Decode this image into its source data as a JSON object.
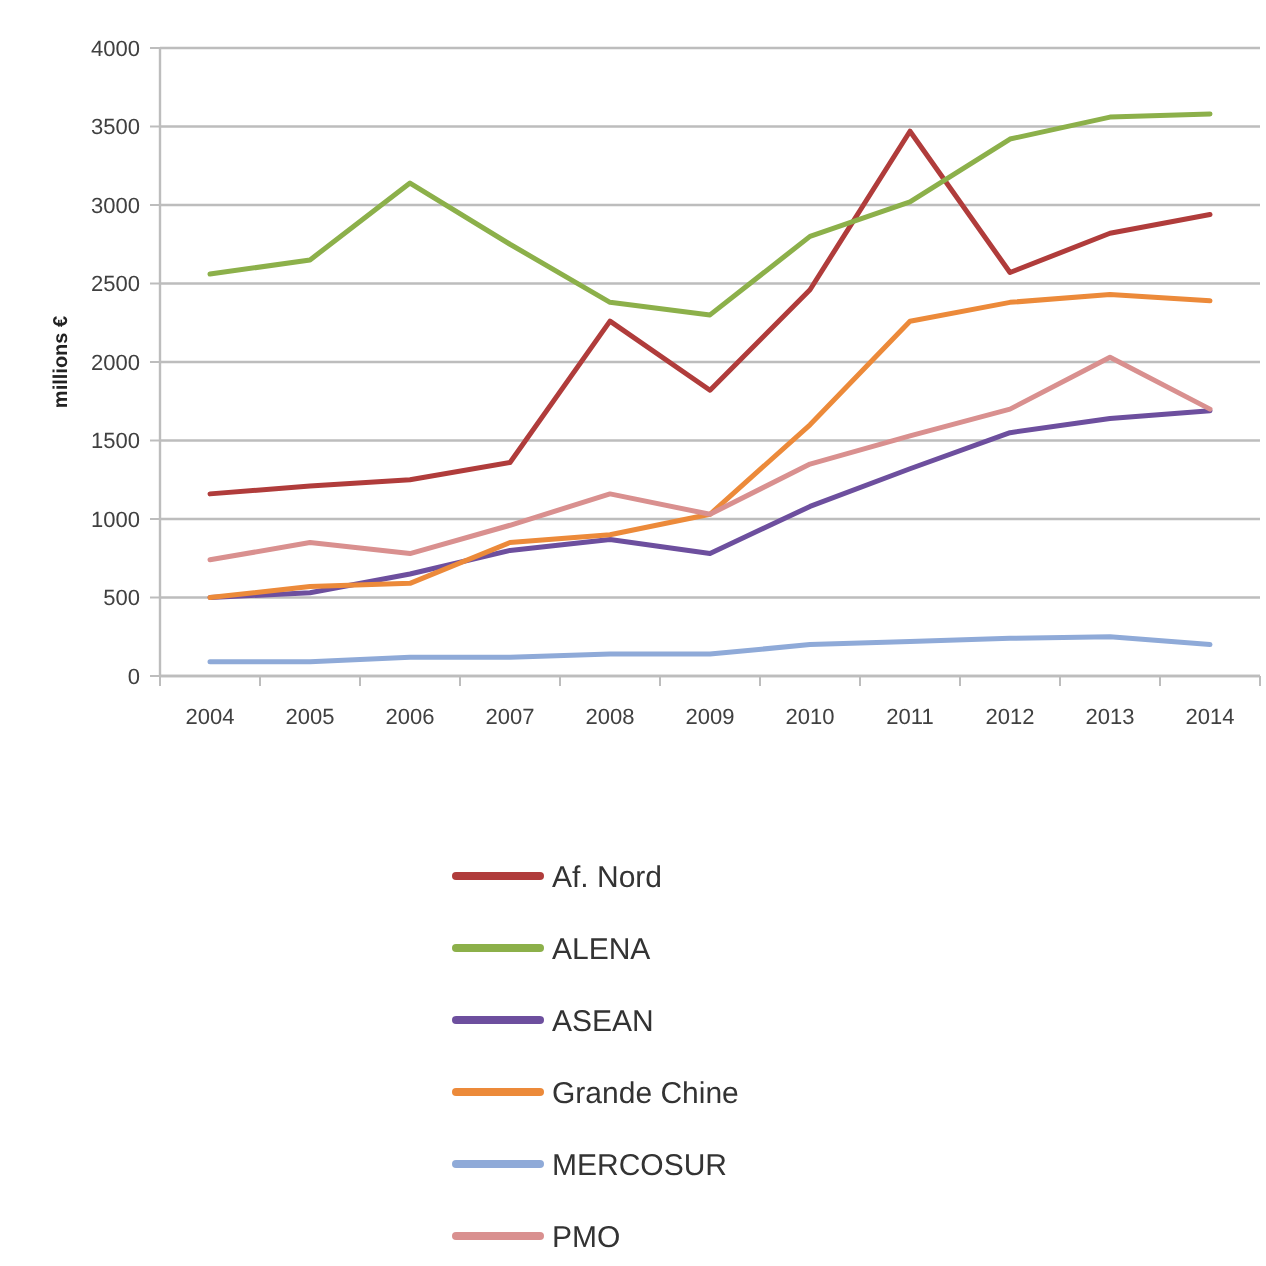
{
  "chart_data": {
    "type": "line",
    "ylabel": "millions €",
    "categories": [
      "2004",
      "2005",
      "2006",
      "2007",
      "2008",
      "2009",
      "2010",
      "2011",
      "2012",
      "2013",
      "2014"
    ],
    "series": [
      {
        "name": "Af. Nord",
        "color": "#b03c3b",
        "values": [
          1160,
          1210,
          1250,
          1360,
          2260,
          1820,
          2460,
          3470,
          2570,
          2820,
          2940
        ]
      },
      {
        "name": "ALENA",
        "color": "#8cb04a",
        "values": [
          2560,
          2650,
          3140,
          2750,
          2380,
          2300,
          2800,
          3020,
          3420,
          3560,
          3580
        ]
      },
      {
        "name": "ASEAN",
        "color": "#6d4f9e",
        "values": [
          500,
          530,
          650,
          800,
          870,
          780,
          1080,
          1320,
          1550,
          1640,
          1690
        ]
      },
      {
        "name": "Grande Chine",
        "color": "#ec8a3a",
        "values": [
          500,
          570,
          590,
          850,
          900,
          1030,
          1600,
          2260,
          2380,
          2430,
          2390
        ]
      },
      {
        "name": "MERCOSUR",
        "color": "#8faad8",
        "values": [
          90,
          90,
          120,
          120,
          140,
          140,
          200,
          220,
          240,
          250,
          200
        ]
      },
      {
        "name": "PMO",
        "color": "#d9908f",
        "values": [
          740,
          850,
          780,
          960,
          1160,
          1030,
          1350,
          1530,
          1700,
          2030,
          1700
        ]
      }
    ],
    "ylim": [
      0,
      4000
    ],
    "yticks": [
      0,
      500,
      1000,
      1500,
      2000,
      2500,
      3000,
      3500,
      4000
    ],
    "grid": "y",
    "legend": "bottom"
  }
}
